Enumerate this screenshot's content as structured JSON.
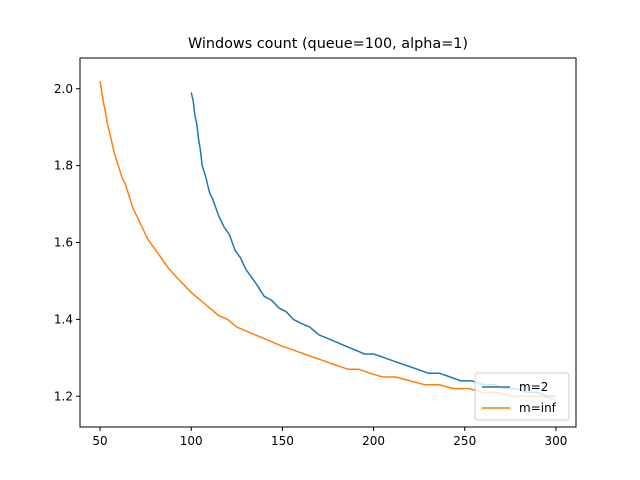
{
  "chart_data": {
    "type": "line",
    "title": "Windows count (queue=100, alpha=1)",
    "xlabel": "",
    "ylabel": "",
    "xlim": [
      39,
      311
    ],
    "ylim": [
      1.12,
      2.08
    ],
    "xticks": [
      50,
      100,
      150,
      200,
      250,
      300
    ],
    "yticks": [
      1.2,
      1.4,
      1.6,
      1.8,
      2.0
    ],
    "xtick_labels": [
      "50",
      "100",
      "150",
      "200",
      "250",
      "300"
    ],
    "ytick_labels": [
      "1.2",
      "1.4",
      "1.6",
      "1.8",
      "2.0"
    ],
    "grid": false,
    "legend_position": "lower-right",
    "series": [
      {
        "name": "m=2",
        "color": "#1f77b4",
        "x": [
          100,
          101,
          102,
          103,
          104,
          105,
          106,
          108,
          110,
          112,
          115,
          118,
          121,
          124,
          127,
          130,
          133,
          136,
          140,
          144,
          148,
          152,
          156,
          160,
          165,
          170,
          175,
          180,
          185,
          190,
          195,
          200,
          206,
          212,
          218,
          224,
          230,
          236,
          242,
          248,
          254,
          260,
          266,
          272,
          278,
          284,
          290,
          295,
          300
        ],
        "values": [
          1.99,
          1.97,
          1.93,
          1.91,
          1.87,
          1.84,
          1.8,
          1.77,
          1.73,
          1.71,
          1.67,
          1.64,
          1.62,
          1.58,
          1.56,
          1.53,
          1.51,
          1.49,
          1.46,
          1.45,
          1.43,
          1.42,
          1.4,
          1.39,
          1.38,
          1.36,
          1.35,
          1.34,
          1.33,
          1.32,
          1.31,
          1.31,
          1.3,
          1.29,
          1.28,
          1.27,
          1.26,
          1.26,
          1.25,
          1.24,
          1.24,
          1.23,
          1.23,
          1.22,
          1.22,
          1.21,
          1.21,
          1.2,
          1.2
        ]
      },
      {
        "name": "m=inf",
        "color": "#ff7f0e",
        "x": [
          50,
          51,
          52,
          53,
          54,
          56,
          58,
          60,
          62,
          64,
          66,
          68,
          70,
          73,
          76,
          79,
          82,
          85,
          88,
          92,
          96,
          100,
          105,
          110,
          115,
          120,
          125,
          130,
          135,
          140,
          145,
          150,
          156,
          162,
          168,
          174,
          180,
          186,
          192,
          198,
          205,
          212,
          220,
          228,
          236,
          244,
          252,
          260,
          268,
          276,
          284,
          292,
          300
        ],
        "values": [
          2.02,
          1.99,
          1.96,
          1.94,
          1.91,
          1.87,
          1.83,
          1.8,
          1.77,
          1.75,
          1.72,
          1.69,
          1.67,
          1.64,
          1.61,
          1.59,
          1.57,
          1.55,
          1.53,
          1.51,
          1.49,
          1.47,
          1.45,
          1.43,
          1.41,
          1.4,
          1.38,
          1.37,
          1.36,
          1.35,
          1.34,
          1.33,
          1.32,
          1.31,
          1.3,
          1.29,
          1.28,
          1.27,
          1.27,
          1.26,
          1.25,
          1.25,
          1.24,
          1.23,
          1.23,
          1.22,
          1.22,
          1.21,
          1.21,
          1.2,
          1.2,
          1.2,
          1.19
        ]
      }
    ]
  }
}
